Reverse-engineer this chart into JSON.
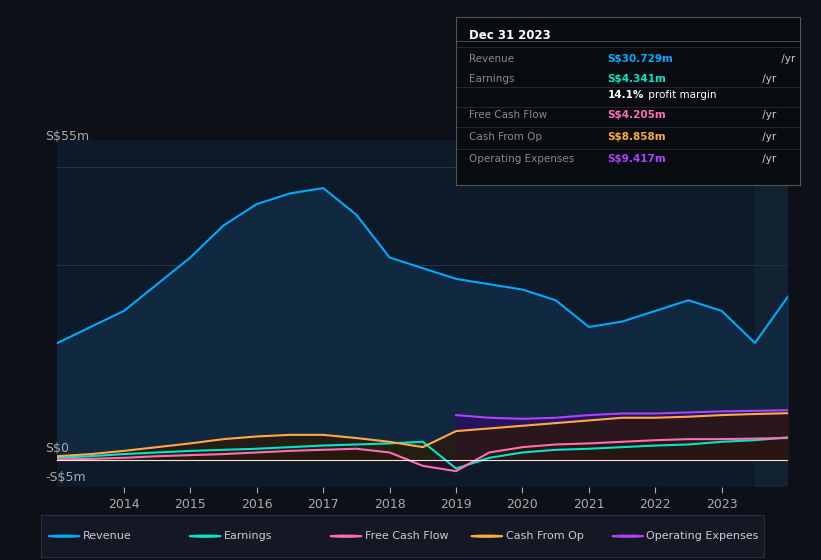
{
  "background_color": "#0d1117",
  "chart_bg_color": "#0d1a2a",
  "years": [
    2013.0,
    2013.5,
    2014.0,
    2014.5,
    2015.0,
    2015.5,
    2016.0,
    2016.5,
    2017.0,
    2017.5,
    2018.0,
    2018.5,
    2019.0,
    2019.5,
    2020.0,
    2020.5,
    2021.0,
    2021.5,
    2022.0,
    2022.5,
    2023.0,
    2023.5,
    2024.0
  ],
  "revenue": [
    22,
    25,
    28,
    33,
    38,
    44,
    48,
    50,
    51,
    46,
    38,
    36,
    34,
    33,
    32,
    30,
    25,
    26,
    28,
    30,
    28,
    22,
    30.729
  ],
  "earnings": [
    0.5,
    0.8,
    1.2,
    1.5,
    1.8,
    2.0,
    2.2,
    2.5,
    2.8,
    3.0,
    3.2,
    3.5,
    -1.5,
    0.5,
    1.5,
    2.0,
    2.2,
    2.5,
    2.8,
    3.0,
    3.5,
    3.8,
    4.341
  ],
  "free_cash_flow": [
    0.2,
    0.3,
    0.5,
    0.8,
    1.0,
    1.2,
    1.5,
    1.8,
    2.0,
    2.2,
    1.5,
    -1.0,
    -2.0,
    1.5,
    2.5,
    3.0,
    3.2,
    3.5,
    3.8,
    4.0,
    4.0,
    4.1,
    4.205
  ],
  "cash_from_op": [
    0.8,
    1.2,
    1.8,
    2.5,
    3.2,
    4.0,
    4.5,
    4.8,
    4.8,
    4.2,
    3.5,
    2.5,
    5.5,
    6.0,
    6.5,
    7.0,
    7.5,
    8.0,
    8.0,
    8.2,
    8.5,
    8.7,
    8.858
  ],
  "operating_expenses": [
    null,
    null,
    null,
    null,
    null,
    null,
    null,
    null,
    null,
    null,
    null,
    null,
    8.5,
    8.0,
    7.8,
    8.0,
    8.5,
    8.8,
    8.8,
    9.0,
    9.2,
    9.3,
    9.417
  ],
  "ylim": [
    -5,
    60
  ],
  "revenue_color": "#00aaff",
  "revenue_fill": "#1a3a5c",
  "earnings_color": "#00e5cc",
  "free_cash_flow_color": "#ff6eb4",
  "cash_from_op_color": "#ffaa44",
  "op_expenses_color": "#aa44ff",
  "legend_items": [
    "Revenue",
    "Earnings",
    "Free Cash Flow",
    "Cash From Op",
    "Operating Expenses"
  ],
  "legend_colors": [
    "#00aaff",
    "#00e5cc",
    "#ff6eb4",
    "#ffaa44",
    "#aa44ff"
  ],
  "info_box": {
    "title": "Dec 31 2023",
    "rows": [
      {
        "label": "Revenue",
        "value": "S$30.729m",
        "suffix": " /yr",
        "value_color": "#00aaff"
      },
      {
        "label": "Earnings",
        "value": "S$4.341m",
        "suffix": " /yr",
        "value_color": "#00e5cc"
      },
      {
        "label": "",
        "value": "14.1%",
        "suffix": " profit margin",
        "value_color": "#ffffff",
        "bold_part": true
      },
      {
        "label": "Free Cash Flow",
        "value": "S$4.205m",
        "suffix": " /yr",
        "value_color": "#ff6eb4"
      },
      {
        "label": "Cash From Op",
        "value": "S$8.858m",
        "suffix": " /yr",
        "value_color": "#ffaa44"
      },
      {
        "label": "Operating Expenses",
        "value": "S$9.417m",
        "suffix": " /yr",
        "value_color": "#aa44ff"
      }
    ]
  }
}
